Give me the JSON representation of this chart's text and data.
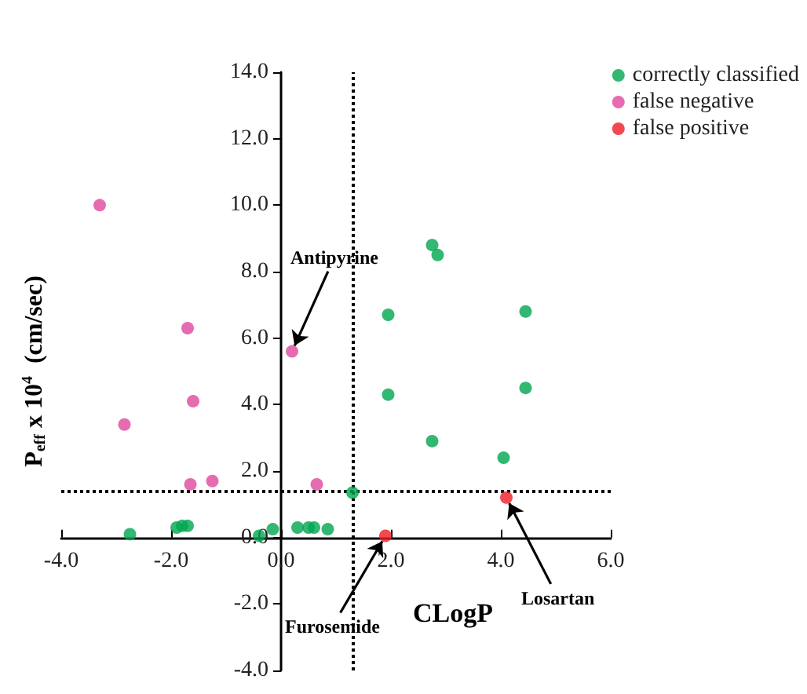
{
  "chart_data": {
    "type": "scatter",
    "xlabel": "CLogP",
    "ylabel": "P$_{eff}$ x 10$^{4}$  (cm/sec)",
    "xlim": [
      -4,
      6
    ],
    "ylim": [
      -4,
      14
    ],
    "xticks": [
      {
        "value": -4,
        "label": "-4.0"
      },
      {
        "value": -2,
        "label": "-2.0"
      },
      {
        "value": 0,
        "label": "0.0"
      },
      {
        "value": 2,
        "label": "2.0"
      },
      {
        "value": 4,
        "label": "4.0"
      },
      {
        "value": 6,
        "label": "6.0"
      }
    ],
    "yticks": [
      {
        "value": -4,
        "label": "-4.0"
      },
      {
        "value": -2,
        "label": "-2.0"
      },
      {
        "value": 0,
        "label": "0.0"
      },
      {
        "value": 2,
        "label": "2.0"
      },
      {
        "value": 4,
        "label": "4.0"
      },
      {
        "value": 6,
        "label": "6.0"
      },
      {
        "value": 8,
        "label": "8.0"
      },
      {
        "value": 10,
        "label": "10.0"
      },
      {
        "value": 12,
        "label": "12.0"
      },
      {
        "value": 14,
        "label": "14.0"
      }
    ],
    "grid": false,
    "legend": "top right",
    "marker": "circle",
    "series": [
      {
        "name": "correctly classified",
        "color": "#00a650",
        "x": [
          -2.75,
          -1.9,
          -1.8,
          -1.7,
          -0.4,
          -0.15,
          0.3,
          0.5,
          0.6,
          0.85,
          1.3,
          1.95,
          1.95,
          2.75,
          2.85,
          4.45,
          4.45,
          2.75,
          4.05
        ],
        "values": [
          0.1,
          0.3,
          0.35,
          0.35,
          0.05,
          0.25,
          0.3,
          0.3,
          0.3,
          0.25,
          1.35,
          6.7,
          4.3,
          8.8,
          8.5,
          6.8,
          4.5,
          2.9,
          2.4
        ]
      },
      {
        "name": "false negative",
        "color": "#e0479e",
        "x": [
          -3.3,
          -2.85,
          -1.7,
          -1.6,
          -1.65,
          -1.25,
          0.2,
          0.65
        ],
        "values": [
          10.0,
          3.4,
          6.3,
          4.1,
          1.6,
          1.7,
          5.6,
          1.6
        ]
      },
      {
        "name": "false positive",
        "color": "#ed1c24",
        "x": [
          1.9,
          4.1
        ],
        "values": [
          0.05,
          1.2
        ]
      }
    ],
    "ref_lines": [
      {
        "axis": "x",
        "value": 1.3,
        "line_style": "dotted",
        "color": "#000000"
      },
      {
        "axis": "y",
        "value": 1.4,
        "line_style": "dotted",
        "color": "#000000"
      }
    ],
    "annotations": [
      {
        "text": "Antipyrine",
        "x": 0.2,
        "y": 5.6
      },
      {
        "text": "Furosemide",
        "x": 1.9,
        "y": 0.05
      },
      {
        "text": "Losartan",
        "x": 4.1,
        "y": 1.2
      }
    ]
  }
}
